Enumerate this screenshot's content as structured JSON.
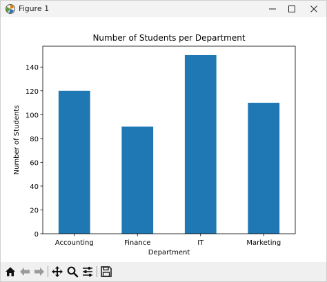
{
  "window": {
    "title": "Figure 1",
    "app_icon": "matplotlib-figure-icon",
    "controls": [
      "minimize-icon",
      "maximize-icon",
      "close-icon"
    ]
  },
  "toolbar": {
    "tools": [
      "home-icon",
      "back-arrow-icon",
      "forward-arrow-icon",
      "pan-move-icon",
      "zoom-magnifier-icon",
      "subplots-config-icon",
      "save-floppy-icon"
    ]
  },
  "chart_data": {
    "type": "bar",
    "title": "Number of Students per Department",
    "xlabel": "Department",
    "ylabel": "Number of Students",
    "categories": [
      "Accounting",
      "Finance",
      "IT",
      "Marketing"
    ],
    "values": [
      120,
      90,
      150,
      110
    ],
    "ylim": [
      0,
      157.5
    ],
    "yticks": [
      0,
      20,
      40,
      60,
      80,
      100,
      120,
      140
    ],
    "bar_color": "#1f77b4",
    "grid": false,
    "legend": "none"
  }
}
